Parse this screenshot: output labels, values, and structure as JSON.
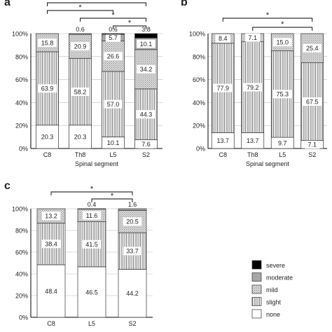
{
  "legend": {
    "placement": "bottom-right",
    "entries": [
      "severe",
      "moderate",
      "mild",
      "slight",
      "none"
    ]
  },
  "colors": {
    "none": "#ffffff",
    "slight": "#ffffff",
    "mild": "#d8d8d8",
    "moderate": "#a6a6a6",
    "severe": "#000000"
  },
  "chart_data": [
    {
      "panel": "a",
      "type": "bar",
      "stacked": true,
      "xlabel": "Spinal segment",
      "ylim": [
        0,
        100
      ],
      "ytick_labels": [
        "0%",
        "20%",
        "40%",
        "60%",
        "80%",
        "100%"
      ],
      "categories": [
        "C8",
        "Th8",
        "L5",
        "S2"
      ],
      "series": [
        {
          "name": "none",
          "values": [
            20.3,
            20.3,
            10.1,
            7.6
          ],
          "labels": [
            "20.3",
            "20.3",
            "10.1",
            "7.6"
          ]
        },
        {
          "name": "slight",
          "values": [
            63.9,
            58.2,
            57.0,
            44.3
          ],
          "labels": [
            "63.9",
            "58.2",
            "57.0",
            "44.3"
          ]
        },
        {
          "name": "mild",
          "values": [
            15.8,
            20.9,
            26.6,
            34.2
          ],
          "labels": [
            "15.8",
            "20.9",
            "26.6",
            "34.2"
          ]
        },
        {
          "name": "moderate",
          "values": [
            0,
            0.6,
            5.7,
            10.1
          ],
          "labels": [
            "",
            "0.6",
            "5.7",
            "10.1"
          ]
        },
        {
          "name": "severe",
          "values": [
            0,
            0,
            0.6,
            3.8
          ],
          "labels": [
            "",
            "",
            "0.6",
            "3.8"
          ]
        }
      ],
      "significance": [
        {
          "from": "C8",
          "to": "S2",
          "label": "*"
        },
        {
          "from": "C8",
          "to": "L5",
          "label": "*"
        },
        {
          "from": "Th8",
          "to": "S2",
          "label": "*"
        },
        {
          "from": "L5",
          "to": "S2",
          "label": "*"
        }
      ]
    },
    {
      "panel": "b",
      "type": "bar",
      "stacked": true,
      "xlabel": "Spinal segment",
      "ylim": [
        0,
        100
      ],
      "ytick_labels": [
        "0%",
        "20%",
        "40%",
        "60%",
        "80%",
        "100%"
      ],
      "categories": [
        "C8",
        "Th8",
        "L5",
        "S2"
      ],
      "series": [
        {
          "name": "none",
          "values": [
            13.7,
            13.7,
            9.7,
            7.1
          ],
          "labels": [
            "13.7",
            "13.7",
            "9.7",
            "7.1"
          ]
        },
        {
          "name": "slight",
          "values": [
            77.9,
            79.2,
            75.3,
            67.5
          ],
          "labels": [
            "77.9",
            "79.2",
            "75.3",
            "67.5"
          ]
        },
        {
          "name": "mild",
          "values": [
            8.4,
            7.1,
            15.0,
            25.4
          ],
          "labels": [
            "8.4",
            "7.1",
            "15.0",
            "25.4"
          ]
        },
        {
          "name": "moderate",
          "values": [
            0,
            0,
            0,
            0
          ],
          "labels": [
            "",
            "",
            "",
            ""
          ]
        },
        {
          "name": "severe",
          "values": [
            0,
            0,
            0,
            0
          ],
          "labels": [
            "",
            "",
            "",
            ""
          ]
        }
      ],
      "significance": [
        {
          "from": "C8",
          "to": "S2",
          "label": "*"
        },
        {
          "from": "Th8",
          "to": "S2",
          "label": "*"
        }
      ]
    },
    {
      "panel": "c",
      "type": "bar",
      "stacked": true,
      "xlabel": "",
      "ylim": [
        0,
        100
      ],
      "ytick_labels": [
        "0%",
        "20%",
        "40%",
        "60%",
        "80%",
        "100%"
      ],
      "categories": [
        "C8",
        "L5",
        "S2"
      ],
      "series": [
        {
          "name": "none",
          "values": [
            48.4,
            46.5,
            44.2
          ],
          "labels": [
            "48.4",
            "46.5",
            "44.2"
          ]
        },
        {
          "name": "slight",
          "values": [
            38.4,
            41.5,
            33.7
          ],
          "labels": [
            "38.4",
            "41.5",
            "33.7"
          ]
        },
        {
          "name": "mild",
          "values": [
            13.2,
            11.6,
            20.5
          ],
          "labels": [
            "13.2",
            "11.6",
            "20.5"
          ]
        },
        {
          "name": "moderate",
          "values": [
            0,
            0.4,
            1.6
          ],
          "labels": [
            "",
            "0.4",
            "1.6"
          ]
        },
        {
          "name": "severe",
          "values": [
            0,
            0,
            0
          ],
          "labels": [
            "",
            "",
            ""
          ]
        }
      ],
      "significance": [
        {
          "from": "C8",
          "to": "S2",
          "label": "*"
        },
        {
          "from": "L5",
          "to": "S2",
          "label": "*"
        }
      ]
    }
  ]
}
